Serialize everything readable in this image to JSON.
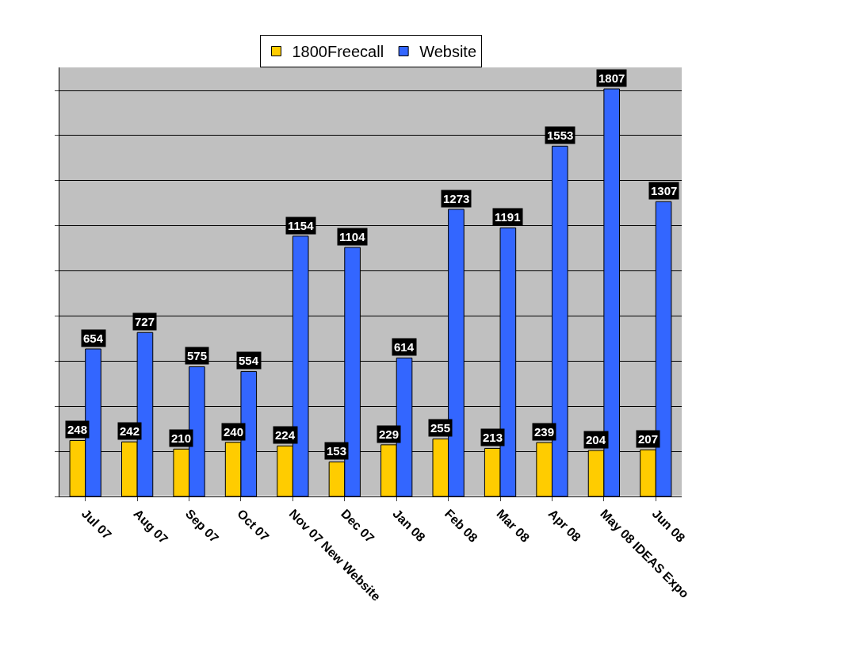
{
  "chart_data": {
    "type": "bar",
    "categories": [
      "Jul 07",
      "Aug 07",
      "Sep 07",
      "Oct 07",
      "Nov 07 New Website",
      "Dec 07",
      "Jan 08",
      "Feb 08",
      "Mar 08",
      "Apr 08",
      "May 08 IDEAS Expo",
      "Jun 08"
    ],
    "series": [
      {
        "name": "1800Freecall",
        "color": "#ffcc00",
        "values": [
          248,
          242,
          210,
          240,
          224,
          153,
          229,
          255,
          213,
          239,
          204,
          207
        ]
      },
      {
        "name": "Website",
        "color": "#3366ff",
        "values": [
          654,
          727,
          575,
          554,
          1154,
          1104,
          614,
          1273,
          1191,
          1553,
          1807,
          1307
        ]
      }
    ],
    "grid": "y",
    "legend": "top",
    "tick_labels": "x",
    "data_labels": true
  }
}
